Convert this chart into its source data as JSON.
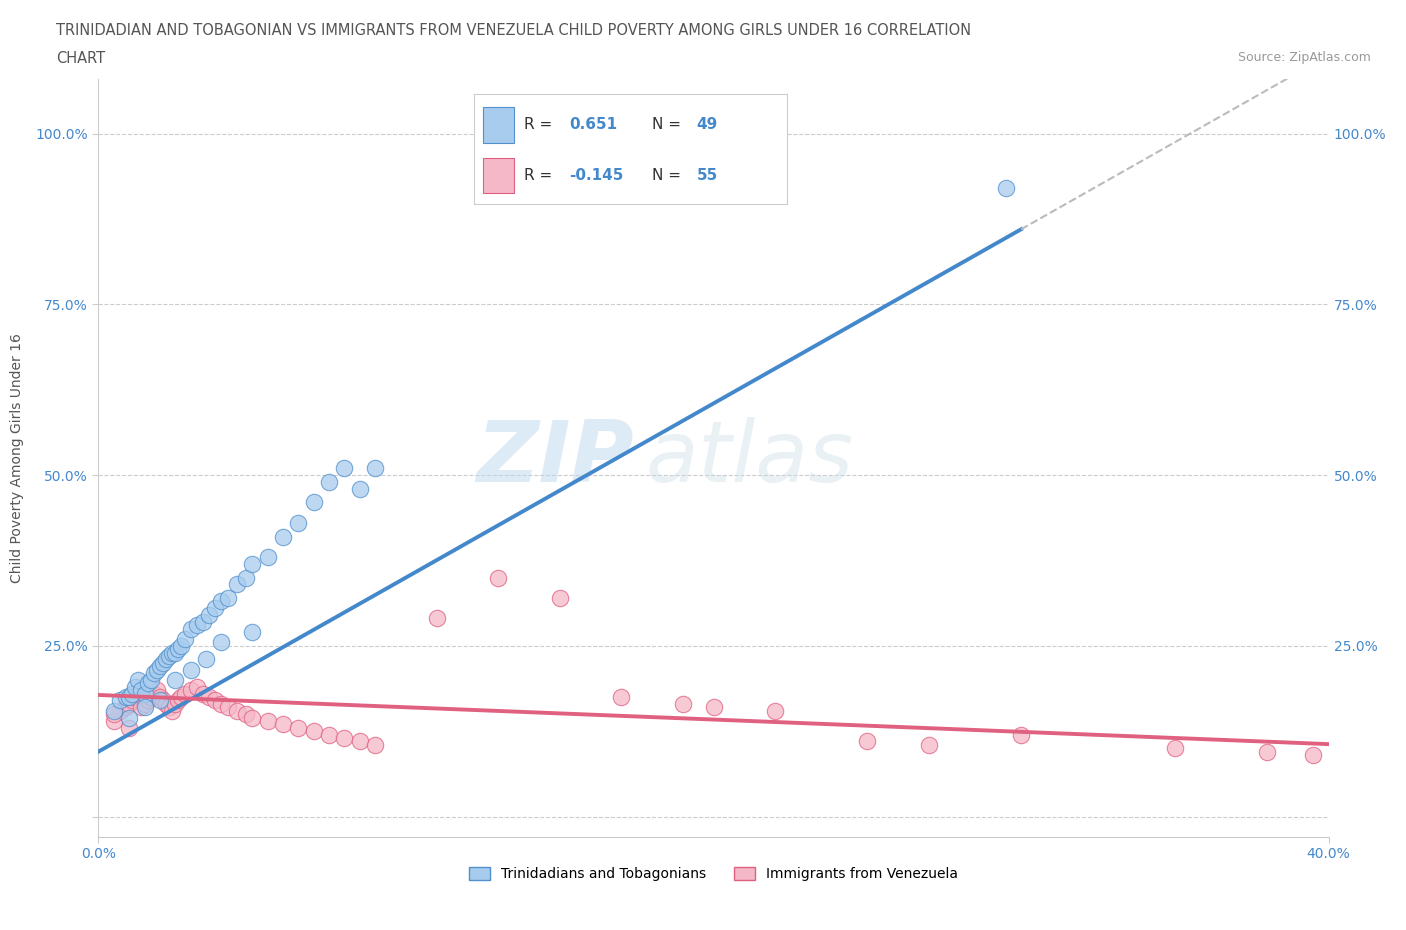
{
  "title_line1": "TRINIDADIAN AND TOBAGONIAN VS IMMIGRANTS FROM VENEZUELA CHILD POVERTY AMONG GIRLS UNDER 16 CORRELATION",
  "title_line2": "CHART",
  "source_text": "Source: ZipAtlas.com",
  "ylabel": "Child Poverty Among Girls Under 16",
  "x_min": 0.0,
  "x_max": 0.4,
  "y_min": -0.03,
  "y_max": 1.08,
  "blue_R": "0.651",
  "blue_N": "49",
  "pink_R": "-0.145",
  "pink_N": "55",
  "legend_label_blue": "Trinidadians and Tobagonians",
  "legend_label_pink": "Immigrants from Venezuela",
  "watermark_zip": "ZIP",
  "watermark_atlas": "atlas",
  "blue_color": "#A8CCEE",
  "blue_edge_color": "#5090CC",
  "blue_line_color": "#4488CC",
  "pink_color": "#F5B8C8",
  "pink_edge_color": "#E06080",
  "pink_line_color": "#E06080",
  "dashed_color": "#BBBBBB",
  "grid_color": "#CCCCCC",
  "axis_label_color": "#4488CC",
  "title_color": "#555555",
  "blue_scatter_x": [
    0.005,
    0.007,
    0.009,
    0.01,
    0.011,
    0.012,
    0.013,
    0.014,
    0.015,
    0.016,
    0.017,
    0.018,
    0.019,
    0.02,
    0.021,
    0.022,
    0.023,
    0.024,
    0.025,
    0.026,
    0.027,
    0.028,
    0.03,
    0.032,
    0.034,
    0.036,
    0.038,
    0.04,
    0.042,
    0.045,
    0.048,
    0.05,
    0.055,
    0.06,
    0.065,
    0.07,
    0.075,
    0.08,
    0.085,
    0.09,
    0.01,
    0.015,
    0.02,
    0.025,
    0.03,
    0.035,
    0.04,
    0.05,
    0.295
  ],
  "blue_scatter_y": [
    0.155,
    0.17,
    0.175,
    0.175,
    0.18,
    0.19,
    0.2,
    0.185,
    0.18,
    0.195,
    0.2,
    0.21,
    0.215,
    0.22,
    0.225,
    0.23,
    0.235,
    0.24,
    0.24,
    0.245,
    0.25,
    0.26,
    0.275,
    0.28,
    0.285,
    0.295,
    0.305,
    0.315,
    0.32,
    0.34,
    0.35,
    0.37,
    0.38,
    0.41,
    0.43,
    0.46,
    0.49,
    0.51,
    0.48,
    0.51,
    0.145,
    0.16,
    0.17,
    0.2,
    0.215,
    0.23,
    0.255,
    0.27,
    0.92
  ],
  "pink_scatter_x": [
    0.005,
    0.007,
    0.009,
    0.01,
    0.011,
    0.012,
    0.013,
    0.014,
    0.015,
    0.016,
    0.017,
    0.018,
    0.019,
    0.02,
    0.021,
    0.022,
    0.023,
    0.024,
    0.025,
    0.026,
    0.027,
    0.028,
    0.03,
    0.032,
    0.034,
    0.036,
    0.038,
    0.04,
    0.042,
    0.045,
    0.048,
    0.05,
    0.055,
    0.06,
    0.065,
    0.07,
    0.075,
    0.08,
    0.085,
    0.09,
    0.11,
    0.13,
    0.15,
    0.17,
    0.19,
    0.2,
    0.22,
    0.25,
    0.27,
    0.3,
    0.35,
    0.38,
    0.395,
    0.005,
    0.01
  ],
  "pink_scatter_y": [
    0.14,
    0.155,
    0.16,
    0.165,
    0.17,
    0.175,
    0.18,
    0.16,
    0.165,
    0.17,
    0.175,
    0.18,
    0.185,
    0.175,
    0.17,
    0.165,
    0.16,
    0.155,
    0.165,
    0.17,
    0.175,
    0.18,
    0.185,
    0.19,
    0.18,
    0.175,
    0.17,
    0.165,
    0.16,
    0.155,
    0.15,
    0.145,
    0.14,
    0.135,
    0.13,
    0.125,
    0.12,
    0.115,
    0.11,
    0.105,
    0.29,
    0.35,
    0.32,
    0.175,
    0.165,
    0.16,
    0.155,
    0.11,
    0.105,
    0.12,
    0.1,
    0.095,
    0.09,
    0.15,
    0.13
  ],
  "blue_reg_intercept": 0.095,
  "blue_reg_slope": 2.55,
  "pink_reg_intercept": 0.178,
  "pink_reg_slope": -0.18
}
